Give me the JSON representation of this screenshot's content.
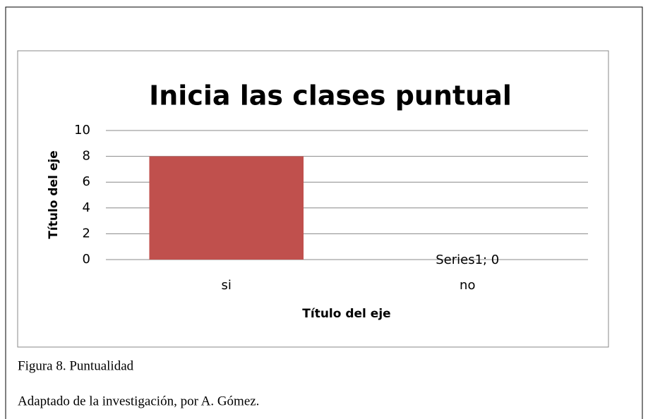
{
  "chart_data": {
    "type": "bar",
    "title": "Inicia las clases puntual",
    "categories": [
      "si",
      "no"
    ],
    "values": [
      8,
      0
    ],
    "value_labels": [
      null,
      "Series1; 0"
    ],
    "color": "#c0504d",
    "ylim": [
      0,
      10
    ],
    "yticks": [
      0,
      2,
      4,
      6,
      8,
      10
    ],
    "grid": true,
    "x_label": "Título del eje",
    "y_label": "Título del eje"
  },
  "caption": "Figura 8. Puntualidad",
  "note": "Adaptado de la investigación, por A. Gómez."
}
